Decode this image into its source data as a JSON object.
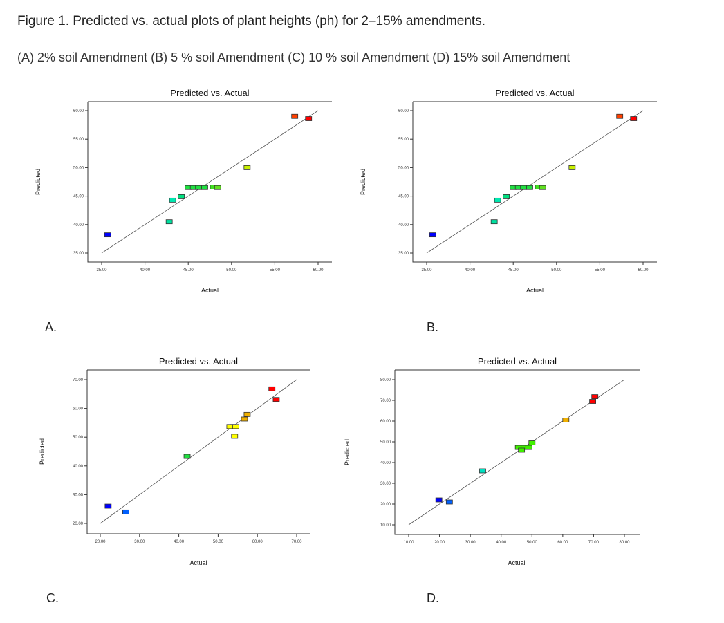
{
  "caption": {
    "label": "Figure 1.",
    "text": " Predicted vs. actual plots of plant heights (ph) for 2–15% amendments."
  },
  "subcaption": "(A) 2% soil Amendment (B) 5 % soil Amendment (C) 10 % soil Amendment (D) 15% soil Amendment",
  "chart_data": [
    {
      "panel": "A.",
      "type": "scatter",
      "title": "Predicted vs. Actual",
      "xlabel": "Actual",
      "ylabel": "Predicted",
      "xlim": [
        35,
        60
      ],
      "ylim": [
        35,
        60
      ],
      "xticks": [
        "35.00",
        "40.00",
        "45.00",
        "50.00",
        "55.00",
        "60.00"
      ],
      "yticks": [
        "35.00",
        "40.00",
        "45.00",
        "50.00",
        "55.00",
        "60.00"
      ],
      "points": [
        [
          35.7,
          38.2,
          "#0000ff"
        ],
        [
          42.8,
          40.5,
          "#00e0a0"
        ],
        [
          43.2,
          44.3,
          "#00e8b0"
        ],
        [
          44.2,
          44.9,
          "#00e080"
        ],
        [
          45.0,
          46.5,
          "#20e040"
        ],
        [
          45.6,
          46.5,
          "#20e040"
        ],
        [
          46.2,
          46.5,
          "#20e040"
        ],
        [
          46.9,
          46.5,
          "#20e040"
        ],
        [
          47.9,
          46.6,
          "#40e020"
        ],
        [
          48.4,
          46.5,
          "#60e020"
        ],
        [
          51.8,
          50.0,
          "#c8f000"
        ],
        [
          57.3,
          59.0,
          "#ff4000"
        ],
        [
          58.9,
          58.6,
          "#ff0000"
        ]
      ]
    },
    {
      "panel": "B.",
      "type": "scatter",
      "title": "Predicted vs. Actual",
      "xlabel": "Actual",
      "ylabel": "Predicted",
      "xlim": [
        35,
        60
      ],
      "ylim": [
        35,
        60
      ],
      "xticks": [
        "35.00",
        "40.00",
        "45.00",
        "50.00",
        "55.00",
        "60.00"
      ],
      "yticks": [
        "35.00",
        "40.00",
        "45.00",
        "50.00",
        "55.00",
        "60.00"
      ],
      "points": [
        [
          35.7,
          38.2,
          "#0000ff"
        ],
        [
          42.8,
          40.5,
          "#00e0a0"
        ],
        [
          43.2,
          44.3,
          "#00e8b0"
        ],
        [
          44.2,
          44.9,
          "#00e080"
        ],
        [
          45.0,
          46.5,
          "#20e040"
        ],
        [
          45.6,
          46.5,
          "#20e040"
        ],
        [
          46.2,
          46.5,
          "#20e040"
        ],
        [
          46.9,
          46.5,
          "#20e040"
        ],
        [
          47.9,
          46.6,
          "#40e020"
        ],
        [
          48.4,
          46.5,
          "#60e020"
        ],
        [
          51.8,
          50.0,
          "#c8f000"
        ],
        [
          57.3,
          59.0,
          "#ff4000"
        ],
        [
          58.9,
          58.6,
          "#ff0000"
        ]
      ]
    },
    {
      "panel": "C.",
      "type": "scatter",
      "title": "Predicted vs. Actual",
      "xlabel": "Actual",
      "ylabel": "Predicted",
      "xlim": [
        20,
        70
      ],
      "ylim": [
        20,
        70
      ],
      "xticks": [
        "20.00",
        "30.00",
        "40.00",
        "50.00",
        "60.00",
        "70.00"
      ],
      "yticks": [
        "20.00",
        "30.00",
        "40.00",
        "50.00",
        "60.00",
        "70.00"
      ],
      "points": [
        [
          22.0,
          26.0,
          "#0000ff"
        ],
        [
          26.5,
          24.0,
          "#0060ff"
        ],
        [
          42.1,
          43.3,
          "#20e040"
        ],
        [
          53.0,
          53.7,
          "#ffff00"
        ],
        [
          53.8,
          53.7,
          "#ffff00"
        ],
        [
          54.5,
          53.7,
          "#ffff00"
        ],
        [
          54.2,
          50.3,
          "#ffff00"
        ],
        [
          56.7,
          56.3,
          "#f0b000"
        ],
        [
          57.4,
          57.9,
          "#f0b000"
        ],
        [
          63.7,
          66.8,
          "#ff0000"
        ],
        [
          64.8,
          63.1,
          "#ff0000"
        ]
      ]
    },
    {
      "panel": "D.",
      "type": "scatter",
      "title": "Predicted vs. Actual",
      "xlabel": "Actual",
      "ylabel": "Predicted",
      "xlim": [
        10,
        80
      ],
      "ylim": [
        10,
        80
      ],
      "xticks": [
        "10.00",
        "20.00",
        "30.00",
        "40.00",
        "50.00",
        "60.00",
        "70.00",
        "80.00"
      ],
      "yticks": [
        "10.00",
        "20.00",
        "30.00",
        "40.00",
        "50.00",
        "60.00",
        "70.00",
        "80.00"
      ],
      "points": [
        [
          19.8,
          22.0,
          "#0000ff"
        ],
        [
          23.2,
          21.0,
          "#0060ff"
        ],
        [
          34.0,
          36.0,
          "#00e0c0"
        ],
        [
          45.6,
          47.3,
          "#40f000"
        ],
        [
          47.5,
          47.3,
          "#40f000"
        ],
        [
          49.0,
          47.3,
          "#40f000"
        ],
        [
          46.6,
          46.0,
          "#40f000"
        ],
        [
          50.0,
          49.5,
          "#40f000"
        ],
        [
          61.0,
          60.5,
          "#f0b000"
        ],
        [
          69.7,
          69.5,
          "#ff0000"
        ],
        [
          70.4,
          71.8,
          "#ff0000"
        ]
      ]
    }
  ]
}
